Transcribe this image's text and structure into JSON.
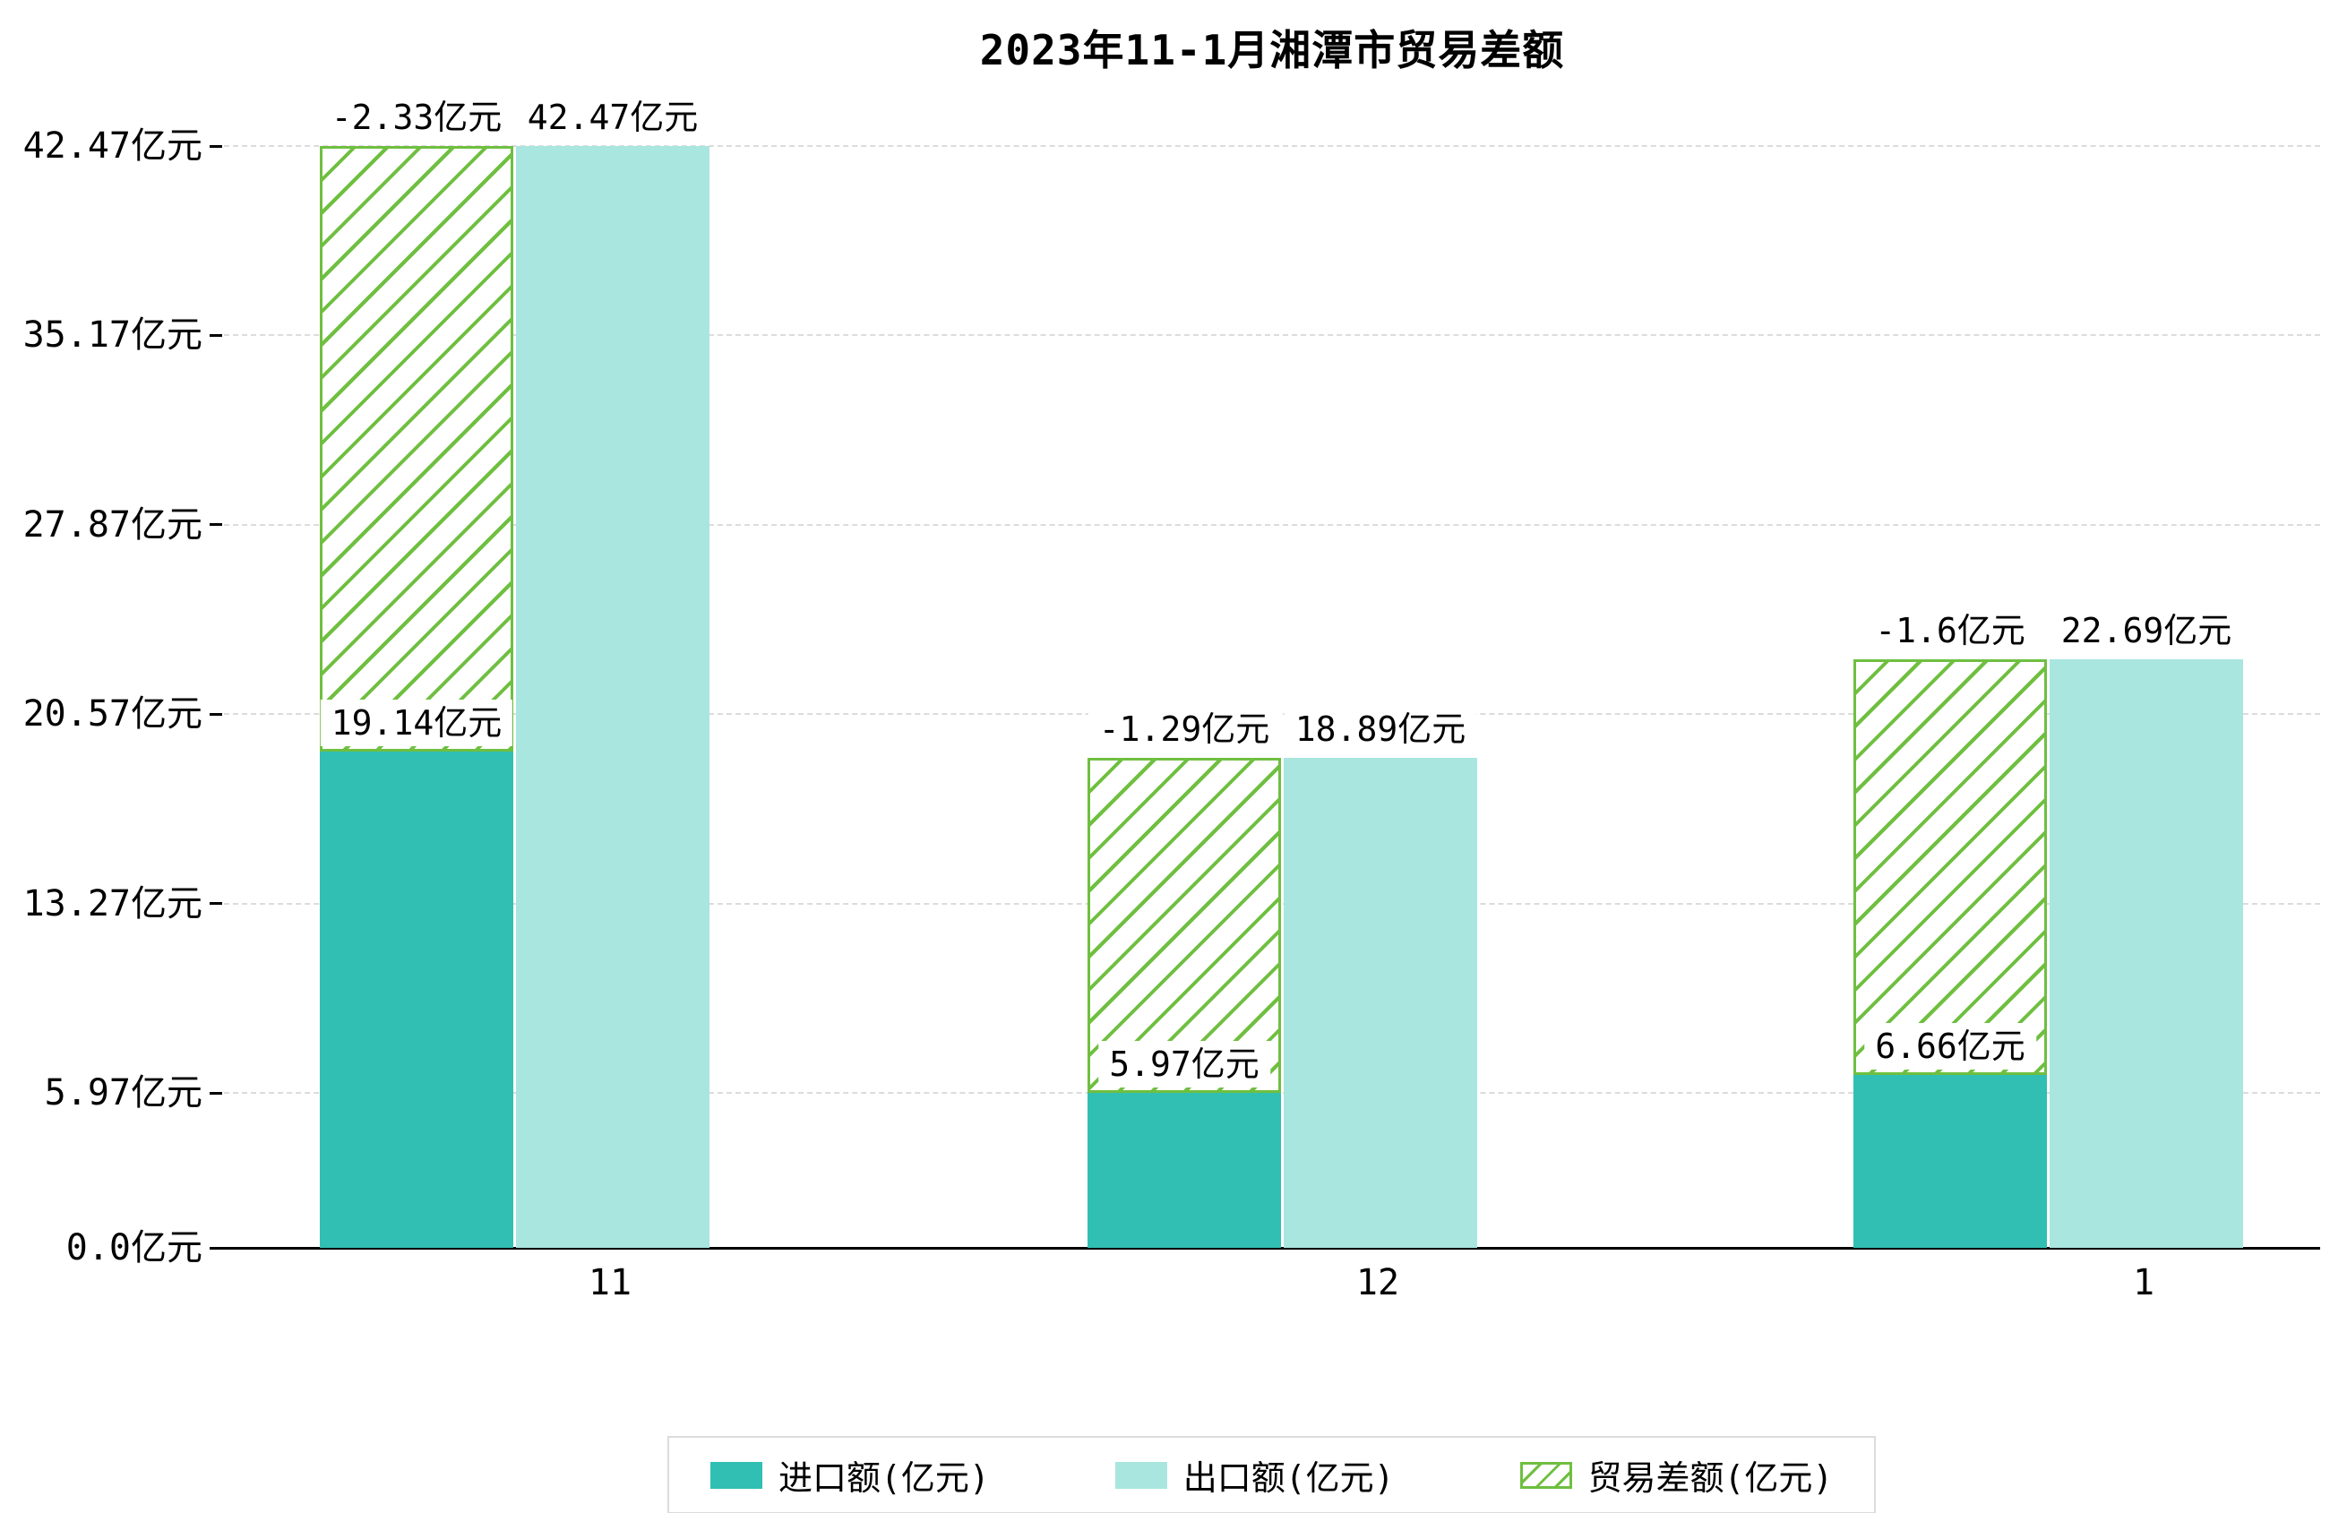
{
  "title": "2023年11-1月湘潭市贸易差额",
  "colors": {
    "import_teal": "#30bfb2",
    "export_light_teal": "#a9e6df",
    "balance_green": "#6fbf40",
    "grid": "#dcdcdc",
    "axis": "#000000",
    "label_text": "#000000",
    "background": "#ffffff"
  },
  "chart_data": {
    "type": "bar",
    "title": "2023年11-1月湘潭市贸易差额",
    "categories": [
      "11",
      "12",
      "1"
    ],
    "series": [
      {
        "name": "进口额(亿元)",
        "values": [
          19.14,
          5.97,
          6.66
        ],
        "labels": [
          "19.14亿元",
          "5.97亿元",
          "6.66亿元"
        ],
        "color": "#30bfb2",
        "style": "solid"
      },
      {
        "name": "出口额(亿元)",
        "values": [
          42.47,
          18.89,
          22.69
        ],
        "labels": [
          "42.47亿元",
          "18.89亿元",
          "22.69亿元"
        ],
        "color": "#a9e6df",
        "style": "solid"
      },
      {
        "name": "贸易差额(亿元)",
        "values": [
          -2.33,
          -1.29,
          -1.6
        ],
        "labels": [
          "-2.33亿元",
          "-1.29亿元",
          "-1.6亿元"
        ],
        "color": "#6fbf40",
        "style": "hatched",
        "drawn_span_note": "hatched bar drawn from import-bar top to export-bar top"
      }
    ],
    "yticks": [
      0.0,
      5.97,
      13.27,
      20.57,
      27.87,
      35.17,
      42.47
    ],
    "ytick_labels": [
      "0.0亿元",
      "5.97亿元",
      "13.27亿元",
      "20.57亿元",
      "27.87亿元",
      "35.17亿元",
      "42.47亿元"
    ],
    "ylim": [
      0,
      42.47
    ],
    "xlabel": "",
    "ylabel": "",
    "grid": "dashed horizontal",
    "legend_position": "bottom-center"
  }
}
